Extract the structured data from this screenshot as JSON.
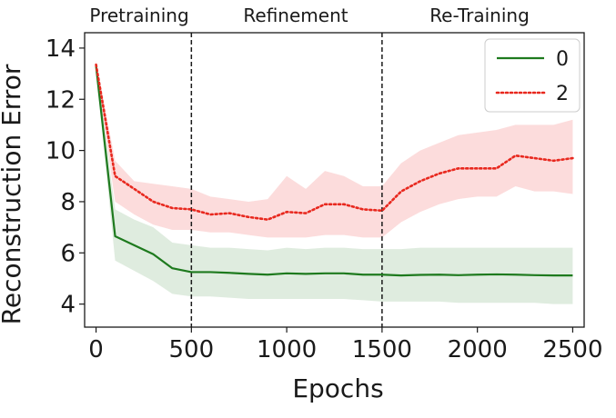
{
  "chart_data": {
    "type": "line",
    "title": "",
    "xlabel": "Epochs",
    "ylabel": "Reconstruction Error",
    "xlim": [
      -60,
      2560
    ],
    "ylim": [
      3.1,
      14.6
    ],
    "xticks": [
      0,
      500,
      1000,
      1500,
      2000,
      2500
    ],
    "xtick_labels": [
      "0",
      "500",
      "1000",
      "1500",
      "2000",
      "2500"
    ],
    "yticks": [
      4,
      6,
      8,
      10,
      12,
      14
    ],
    "ytick_labels": [
      "4",
      "6",
      "8",
      "10",
      "12",
      "14"
    ],
    "grid": false,
    "legend_position": "top-right",
    "phase_boundaries": [
      500,
      1500
    ],
    "phases": [
      {
        "label": "Pretraining",
        "start": -60,
        "end": 500
      },
      {
        "label": "Refinement",
        "start": 500,
        "end": 1500
      },
      {
        "label": "Re-Training",
        "start": 1500,
        "end": 2560
      }
    ],
    "series": [
      {
        "name": "0",
        "style": "solid",
        "color": "#1e7a1e",
        "band_color": "#1e7a1e",
        "points": [
          [
            0,
            13.3
          ],
          [
            100,
            6.65
          ],
          [
            200,
            6.3
          ],
          [
            300,
            5.95
          ],
          [
            400,
            5.4
          ],
          [
            500,
            5.25
          ],
          [
            600,
            5.25
          ],
          [
            700,
            5.22
          ],
          [
            800,
            5.18
          ],
          [
            900,
            5.15
          ],
          [
            1000,
            5.2
          ],
          [
            1100,
            5.18
          ],
          [
            1200,
            5.2
          ],
          [
            1300,
            5.2
          ],
          [
            1400,
            5.15
          ],
          [
            1500,
            5.15
          ],
          [
            1600,
            5.12
          ],
          [
            1700,
            5.14
          ],
          [
            1800,
            5.15
          ],
          [
            1900,
            5.13
          ],
          [
            2000,
            5.15
          ],
          [
            2100,
            5.16
          ],
          [
            2200,
            5.15
          ],
          [
            2300,
            5.13
          ],
          [
            2400,
            5.12
          ],
          [
            2500,
            5.12
          ]
        ],
        "band": [
          [
            0,
            13.1,
            13.4
          ],
          [
            100,
            5.7,
            7.7
          ],
          [
            200,
            5.3,
            7.3
          ],
          [
            300,
            4.9,
            7.0
          ],
          [
            400,
            4.4,
            6.4
          ],
          [
            500,
            4.3,
            6.3
          ],
          [
            600,
            4.3,
            6.2
          ],
          [
            700,
            4.25,
            6.2
          ],
          [
            800,
            4.2,
            6.15
          ],
          [
            900,
            4.2,
            6.1
          ],
          [
            1000,
            4.2,
            6.2
          ],
          [
            1100,
            4.2,
            6.15
          ],
          [
            1200,
            4.2,
            6.2
          ],
          [
            1300,
            4.2,
            6.2
          ],
          [
            1400,
            4.15,
            6.15
          ],
          [
            1500,
            4.1,
            6.15
          ],
          [
            1600,
            4.1,
            6.15
          ],
          [
            1700,
            4.1,
            6.2
          ],
          [
            1800,
            4.1,
            6.2
          ],
          [
            1900,
            4.05,
            6.2
          ],
          [
            2000,
            4.05,
            6.2
          ],
          [
            2100,
            4.05,
            6.2
          ],
          [
            2200,
            4.05,
            6.2
          ],
          [
            2300,
            4.05,
            6.2
          ],
          [
            2400,
            4.0,
            6.2
          ],
          [
            2500,
            4.0,
            6.2
          ]
        ]
      },
      {
        "name": "2",
        "style": "dotted",
        "color": "#e8281e",
        "band_color": "#f48c8c",
        "points": [
          [
            0,
            13.35
          ],
          [
            100,
            9.0
          ],
          [
            200,
            8.5
          ],
          [
            300,
            8.0
          ],
          [
            400,
            7.75
          ],
          [
            500,
            7.7
          ],
          [
            600,
            7.5
          ],
          [
            700,
            7.55
          ],
          [
            800,
            7.4
          ],
          [
            900,
            7.3
          ],
          [
            1000,
            7.6
          ],
          [
            1100,
            7.55
          ],
          [
            1200,
            7.9
          ],
          [
            1300,
            7.9
          ],
          [
            1400,
            7.7
          ],
          [
            1500,
            7.65
          ],
          [
            1600,
            8.4
          ],
          [
            1700,
            8.8
          ],
          [
            1800,
            9.1
          ],
          [
            1900,
            9.3
          ],
          [
            2000,
            9.3
          ],
          [
            2100,
            9.3
          ],
          [
            2200,
            9.8
          ],
          [
            2300,
            9.7
          ],
          [
            2400,
            9.6
          ],
          [
            2500,
            9.7
          ]
        ],
        "band": [
          [
            0,
            13.2,
            13.5
          ],
          [
            100,
            8.0,
            9.6
          ],
          [
            200,
            7.5,
            8.8
          ],
          [
            300,
            7.1,
            8.7
          ],
          [
            400,
            6.9,
            8.6
          ],
          [
            500,
            6.9,
            8.5
          ],
          [
            600,
            6.8,
            8.2
          ],
          [
            700,
            6.8,
            8.1
          ],
          [
            800,
            6.7,
            8.0
          ],
          [
            900,
            6.6,
            8.1
          ],
          [
            1000,
            6.6,
            9.0
          ],
          [
            1100,
            6.6,
            8.5
          ],
          [
            1200,
            6.7,
            9.2
          ],
          [
            1300,
            6.7,
            9.0
          ],
          [
            1400,
            6.6,
            8.6
          ],
          [
            1500,
            6.6,
            8.6
          ],
          [
            1600,
            7.2,
            9.5
          ],
          [
            1700,
            7.6,
            10.0
          ],
          [
            1800,
            7.9,
            10.3
          ],
          [
            1900,
            8.1,
            10.6
          ],
          [
            2000,
            8.2,
            10.7
          ],
          [
            2100,
            8.2,
            10.8
          ],
          [
            2200,
            8.6,
            11.0
          ],
          [
            2300,
            8.4,
            11.0
          ],
          [
            2400,
            8.4,
            11.0
          ],
          [
            2500,
            8.3,
            11.2
          ]
        ]
      }
    ]
  }
}
